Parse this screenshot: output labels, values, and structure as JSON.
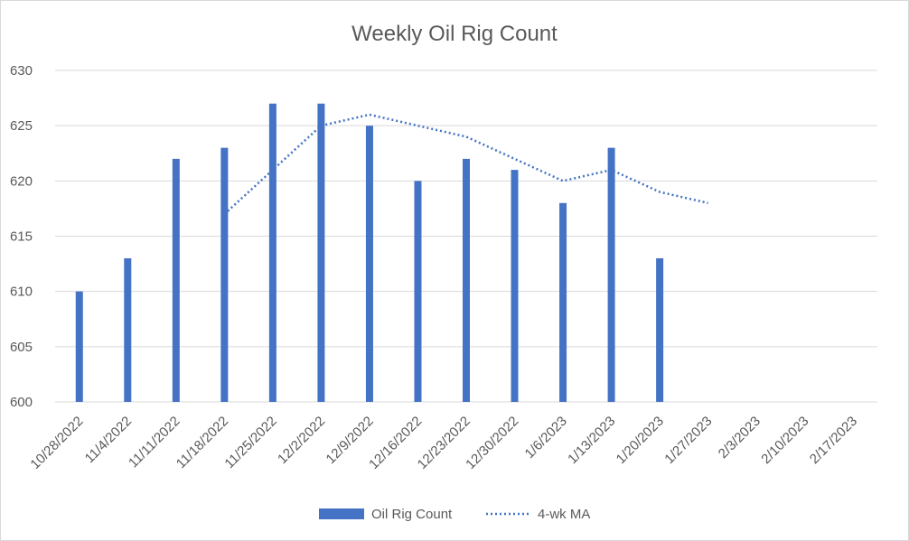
{
  "chart_data": {
    "type": "bar",
    "title": "Weekly Oil Rig Count",
    "xlabel": "",
    "ylabel": "",
    "ylim": [
      600,
      630
    ],
    "yticks": [
      600,
      605,
      610,
      615,
      620,
      625,
      630
    ],
    "grid": true,
    "legend_position": "bottom",
    "categories": [
      "10/28/2022",
      "11/4/2022",
      "11/11/2022",
      "11/18/2022",
      "11/25/2022",
      "12/2/2022",
      "12/9/2022",
      "12/16/2022",
      "12/23/2022",
      "12/30/2022",
      "1/6/2023",
      "1/13/2023",
      "1/20/2023",
      "1/27/2023",
      "2/3/2023",
      "2/10/2023",
      "2/17/2023"
    ],
    "series": [
      {
        "name": "Oil Rig Count",
        "type": "bar",
        "color": "#4472c4",
        "values": [
          610,
          613,
          622,
          623,
          627,
          627,
          625,
          620,
          622,
          621,
          618,
          623,
          613,
          null,
          null,
          null,
          null
        ]
      },
      {
        "name": "4-wk MA",
        "type": "line",
        "style": "dotted",
        "color": "#4472c4",
        "values": [
          null,
          null,
          null,
          617,
          621,
          625,
          626,
          625,
          624,
          622,
          620,
          621,
          619,
          618,
          null,
          null,
          null
        ]
      }
    ]
  }
}
